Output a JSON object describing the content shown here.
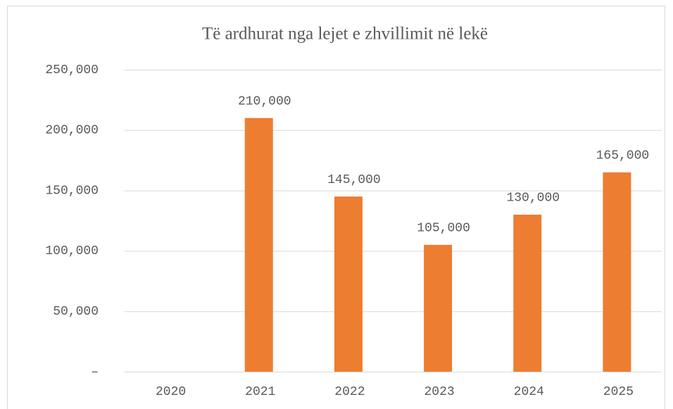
{
  "chart_data": {
    "type": "bar",
    "title": "Të ardhurat nga lejet e zhvillimit në lekë",
    "categories": [
      "2020",
      "2021",
      "2022",
      "2023",
      "2024",
      "2025"
    ],
    "values": [
      0,
      210000,
      145000,
      105000,
      130000,
      165000
    ],
    "value_labels": [
      null,
      "210,000",
      "145,000",
      "105,000",
      "130,000",
      "165,000"
    ],
    "color": "#ed7d31",
    "ylim": [
      0,
      250000
    ],
    "yticks": [
      {
        "value": 0,
        "label": "–"
      },
      {
        "value": 50000,
        "label": "50,000"
      },
      {
        "value": 100000,
        "label": "100,000"
      },
      {
        "value": 150000,
        "label": "150,000"
      },
      {
        "value": 200000,
        "label": "200,000"
      },
      {
        "value": 250000,
        "label": "250,000"
      }
    ],
    "grid": true
  }
}
